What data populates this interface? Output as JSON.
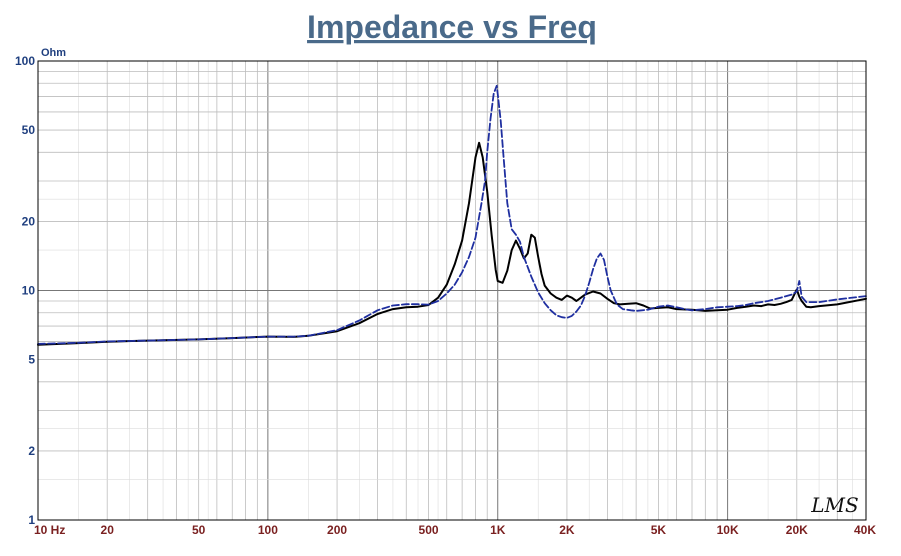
{
  "chart_data": {
    "type": "line",
    "title": "Impedance vs Freq",
    "ylabel": "Ohm",
    "xlabel": "",
    "xscale": "log",
    "yscale": "log",
    "xlim": [
      10,
      40000
    ],
    "ylim": [
      1,
      100
    ],
    "grid": true,
    "watermark": "LMS",
    "x_ticks": [
      {
        "value": 10,
        "label": "10  Hz"
      },
      {
        "value": 20,
        "label": "20"
      },
      {
        "value": 50,
        "label": "50"
      },
      {
        "value": 100,
        "label": "100"
      },
      {
        "value": 200,
        "label": "200"
      },
      {
        "value": 500,
        "label": "500"
      },
      {
        "value": 1000,
        "label": "1K"
      },
      {
        "value": 2000,
        "label": "2K"
      },
      {
        "value": 5000,
        "label": "5K"
      },
      {
        "value": 10000,
        "label": "10K"
      },
      {
        "value": 20000,
        "label": "20K"
      },
      {
        "value": 40000,
        "label": "40K"
      }
    ],
    "y_ticks": [
      {
        "value": 100,
        "label": "100"
      },
      {
        "value": 50,
        "label": "50"
      },
      {
        "value": 20,
        "label": "20"
      },
      {
        "value": 10,
        "label": "10"
      },
      {
        "value": 5,
        "label": "5"
      },
      {
        "value": 2,
        "label": "2"
      },
      {
        "value": 1,
        "label": "1"
      }
    ],
    "series": [
      {
        "color": "#000000",
        "dash": "solid",
        "x": [
          10,
          15,
          20,
          30,
          50,
          70,
          100,
          130,
          150,
          200,
          250,
          300,
          350,
          400,
          450,
          500,
          550,
          600,
          650,
          700,
          750,
          800,
          830,
          860,
          900,
          940,
          980,
          1000,
          1050,
          1100,
          1150,
          1200,
          1250,
          1300,
          1350,
          1400,
          1450,
          1500,
          1550,
          1600,
          1700,
          1800,
          1900,
          2000,
          2100,
          2200,
          2300,
          2400,
          2600,
          2800,
          3000,
          3200,
          3400,
          3700,
          4000,
          4300,
          4600,
          5000,
          5500,
          6000,
          7000,
          8000,
          9000,
          10000,
          11000,
          12000,
          13000,
          14000,
          15000,
          16000,
          17000,
          18000,
          19000,
          19500,
          20000,
          20500,
          21000,
          22000,
          23000,
          25000,
          30000,
          40000
        ],
        "y": [
          5.8,
          5.9,
          5.98,
          6.05,
          6.12,
          6.2,
          6.3,
          6.28,
          6.35,
          6.65,
          7.2,
          7.9,
          8.3,
          8.45,
          8.5,
          8.65,
          9.3,
          10.6,
          13.0,
          16.5,
          24.0,
          38.0,
          44.0,
          38.0,
          27.0,
          17.5,
          12.3,
          11.0,
          10.8,
          12.2,
          15.0,
          16.5,
          15.2,
          13.8,
          14.5,
          17.5,
          17.0,
          14.0,
          11.8,
          10.5,
          9.7,
          9.3,
          9.1,
          9.5,
          9.3,
          9.0,
          9.3,
          9.6,
          9.9,
          9.7,
          9.2,
          8.8,
          8.7,
          8.75,
          8.8,
          8.6,
          8.35,
          8.4,
          8.45,
          8.3,
          8.25,
          8.15,
          8.2,
          8.25,
          8.4,
          8.5,
          8.6,
          8.55,
          8.7,
          8.65,
          8.75,
          8.9,
          9.1,
          9.6,
          10.1,
          9.4,
          9.0,
          8.5,
          8.45,
          8.55,
          8.7,
          9.2
        ]
      },
      {
        "color": "#1f2fa0",
        "dash": "dashed",
        "x": [
          10,
          15,
          20,
          30,
          50,
          70,
          100,
          130,
          150,
          200,
          250,
          300,
          350,
          400,
          450,
          500,
          550,
          600,
          650,
          700,
          750,
          800,
          850,
          880,
          900,
          930,
          960,
          990,
          1000,
          1030,
          1060,
          1100,
          1150,
          1200,
          1250,
          1300,
          1400,
          1500,
          1600,
          1700,
          1800,
          1900,
          2000,
          2100,
          2200,
          2300,
          2400,
          2500,
          2600,
          2700,
          2800,
          2900,
          3000,
          3100,
          3300,
          3500,
          3800,
          4000,
          4500,
          5000,
          5500,
          6000,
          6500,
          7000,
          8000,
          9000,
          10000,
          11000,
          12000,
          13000,
          15000,
          17000,
          19000,
          20000,
          20500,
          21000,
          22000,
          25000,
          30000,
          40000
        ],
        "y": [
          5.85,
          5.92,
          6.0,
          6.05,
          6.12,
          6.2,
          6.3,
          6.3,
          6.35,
          6.72,
          7.4,
          8.2,
          8.6,
          8.72,
          8.72,
          8.68,
          9.0,
          9.7,
          10.6,
          12.0,
          14.0,
          17.0,
          24.0,
          30.0,
          40.0,
          56.0,
          72.0,
          78.0,
          72.0,
          55.0,
          38.0,
          24.0,
          18.5,
          17.5,
          16.3,
          14.0,
          11.5,
          9.8,
          8.8,
          8.2,
          7.8,
          7.65,
          7.6,
          7.75,
          8.1,
          8.6,
          9.5,
          10.8,
          12.4,
          13.8,
          14.5,
          13.6,
          11.5,
          10.0,
          8.7,
          8.3,
          8.2,
          8.15,
          8.25,
          8.5,
          8.6,
          8.45,
          8.3,
          8.2,
          8.3,
          8.45,
          8.5,
          8.55,
          8.65,
          8.8,
          9.0,
          9.3,
          9.6,
          9.9,
          11.0,
          9.4,
          8.9,
          8.9,
          9.15,
          9.45
        ]
      }
    ]
  }
}
